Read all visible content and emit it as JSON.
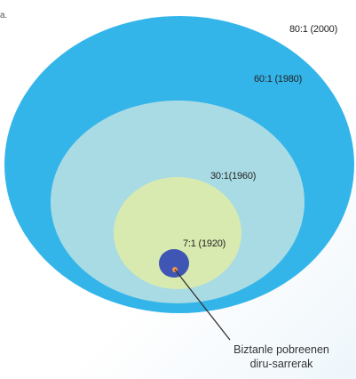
{
  "header": {
    "top_line": "",
    "left_fragment": "a."
  },
  "rings": [
    {
      "label": "80:1 (2000)",
      "color": "#34b5ea"
    },
    {
      "label": "60:1 (1980)",
      "color": "#a9dbe4"
    },
    {
      "label": "30:1(1960)",
      "color": "#d8eaaf"
    },
    {
      "label": "7:1 (1920)",
      "color": "#3f56b4"
    }
  ],
  "marker": {
    "color": "#f4934c"
  },
  "callout": {
    "line1": "Biztanle pobreenen",
    "line2": "diru-sarrerak"
  }
}
